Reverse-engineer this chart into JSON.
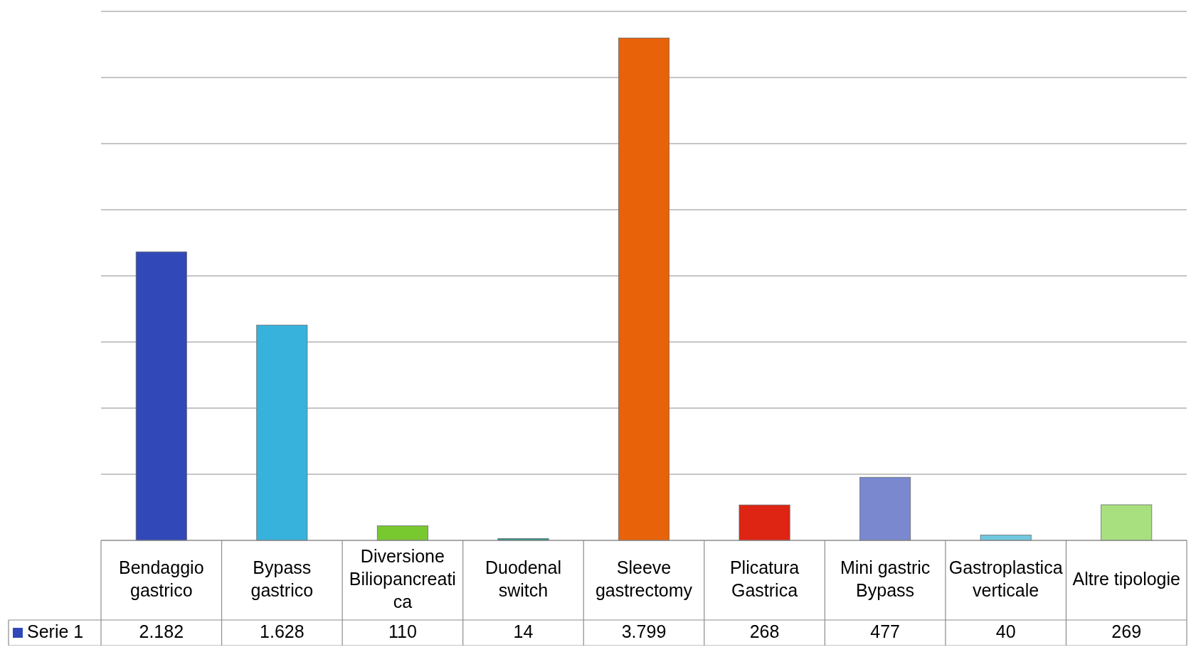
{
  "chart_data": {
    "type": "bar",
    "categories": [
      "Bendaggio gastrico",
      "Bypass gastrico",
      "Diversione Biliopancreatica",
      "Duodenal switch",
      "Sleeve gastrectomy",
      "Plicatura Gastrica",
      "Mini gastric Bypass",
      "Gastroplastica verticale",
      "Altre tipologie"
    ],
    "series": [
      {
        "name": "Serie 1",
        "color": "#3048b8",
        "colors": [
          "#3048b8",
          "#36b2dc",
          "#78c830",
          "#2a9a8a",
          "#e8620a",
          "#de2412",
          "#7a88d0",
          "#70c8e0",
          "#a8e080"
        ],
        "values": [
          2182,
          1628,
          110,
          14,
          3799,
          268,
          477,
          40,
          269
        ],
        "value_labels": [
          "2.182",
          "1.628",
          "110",
          "14",
          "3.799",
          "268",
          "477",
          "40",
          "269"
        ]
      }
    ],
    "ylim": [
      0,
      4000
    ],
    "yticks": [
      {
        "value": 0,
        "label": null
      },
      {
        "value": 500,
        "label": null
      },
      {
        "value": 1000,
        "label": null
      },
      {
        "value": 1500,
        "label": null
      },
      {
        "value": 2000,
        "label": null
      },
      {
        "value": 2500,
        "label": null
      },
      {
        "value": 3000,
        "label": null
      },
      {
        "value": 3500,
        "label": null
      },
      {
        "value": 4000,
        "label": null
      }
    ],
    "tick_labels": "x",
    "grid": true,
    "legend": "bottom"
  }
}
